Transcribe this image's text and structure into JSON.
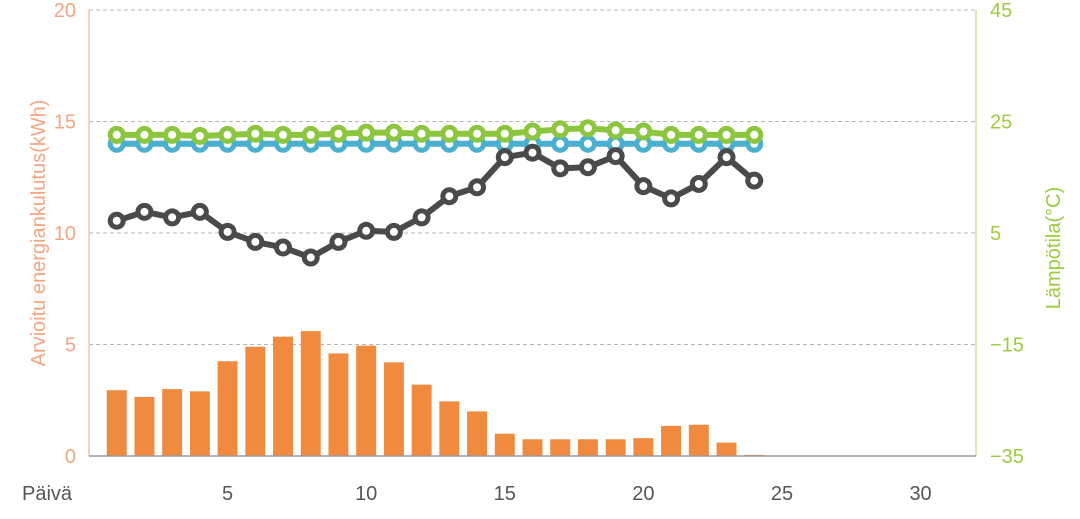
{
  "chart_data": {
    "type": "bar",
    "xlabel": "Päivä",
    "ylabel_left": "Arvioitu energiankulutus(kWh)",
    "ylabel_right": "Lämpötila(°C)",
    "x_range": [
      0,
      32
    ],
    "x_ticks": [
      5,
      10,
      15,
      20,
      25,
      30
    ],
    "y_left_range": [
      0,
      20
    ],
    "y_left_ticks": [
      0,
      5,
      10,
      15,
      20
    ],
    "y_right_range": [
      -35,
      45
    ],
    "y_right_ticks": [
      -35,
      -15,
      5,
      25,
      45
    ],
    "grid": "horizontal dashed",
    "days": [
      1,
      2,
      3,
      4,
      5,
      6,
      7,
      8,
      9,
      10,
      11,
      12,
      13,
      14,
      15,
      16,
      17,
      18,
      19,
      20,
      21,
      22,
      23,
      24
    ],
    "bar_series": {
      "axis": "left",
      "color": "#f08a3e",
      "values": [
        2.95,
        2.65,
        3.0,
        2.9,
        4.25,
        4.9,
        5.35,
        5.6,
        4.6,
        4.95,
        4.2,
        3.2,
        2.45,
        2.0,
        1.0,
        0.75,
        0.75,
        0.75,
        0.75,
        0.8,
        1.35,
        1.4,
        0.6,
        0.05
      ]
    },
    "line_series": [
      {
        "axis": "right",
        "color": "#4bafcf",
        "values": [
          21.0,
          21.0,
          21.0,
          21.0,
          21.0,
          21.0,
          21.0,
          21.0,
          21.0,
          21.0,
          21.0,
          21.0,
          21.0,
          21.0,
          21.0,
          21.0,
          21.0,
          21.0,
          21.0,
          21.0,
          21.0,
          21.0,
          21.0,
          21.0
        ]
      },
      {
        "axis": "right",
        "color": "#8cc63f",
        "values": [
          22.6,
          22.6,
          22.6,
          22.4,
          22.6,
          22.8,
          22.6,
          22.6,
          22.8,
          23.0,
          23.0,
          22.8,
          22.8,
          22.8,
          22.8,
          23.2,
          23.6,
          23.8,
          23.4,
          23.2,
          22.6,
          22.6,
          22.6,
          22.6
        ]
      },
      {
        "axis": "right",
        "color": "#4a4a4a",
        "values": [
          7.2,
          8.8,
          7.8,
          8.8,
          5.2,
          3.4,
          2.4,
          0.6,
          3.4,
          5.4,
          5.2,
          7.8,
          11.6,
          13.2,
          18.6,
          19.4,
          16.6,
          16.8,
          18.8,
          13.4,
          11.2,
          13.8,
          18.6,
          14.4
        ]
      }
    ]
  }
}
